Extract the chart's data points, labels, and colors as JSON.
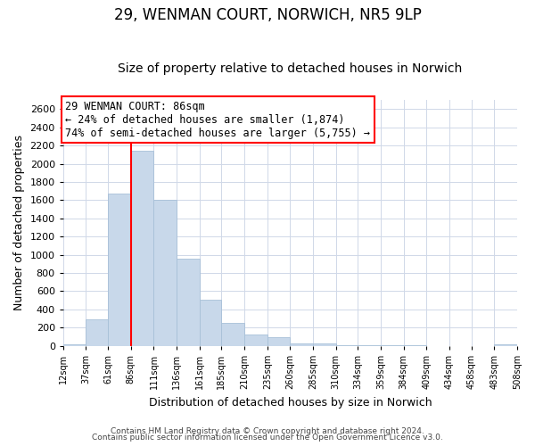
{
  "title": "29, WENMAN COURT, NORWICH, NR5 9LP",
  "subtitle": "Size of property relative to detached houses in Norwich",
  "xlabel": "Distribution of detached houses by size in Norwich",
  "ylabel": "Number of detached properties",
  "bar_color": "#c8d8ea",
  "bar_edgecolor": "#a8c0d8",
  "vline_x": 86,
  "vline_color": "red",
  "annotation_title": "29 WENMAN COURT: 86sqm",
  "annotation_line1": "← 24% of detached houses are smaller (1,874)",
  "annotation_line2": "74% of semi-detached houses are larger (5,755) →",
  "annotation_box_edgecolor": "red",
  "footer1": "Contains HM Land Registry data © Crown copyright and database right 2024.",
  "footer2": "Contains public sector information licensed under the Open Government Licence v3.0.",
  "bin_edges": [
    12,
    37,
    61,
    86,
    111,
    136,
    161,
    185,
    210,
    235,
    260,
    285,
    310,
    334,
    359,
    384,
    409,
    434,
    458,
    483,
    508
  ],
  "bin_labels": [
    "12sqm",
    "37sqm",
    "61sqm",
    "86sqm",
    "111sqm",
    "136sqm",
    "161sqm",
    "185sqm",
    "210sqm",
    "235sqm",
    "260sqm",
    "285sqm",
    "310sqm",
    "334sqm",
    "359sqm",
    "384sqm",
    "409sqm",
    "434sqm",
    "458sqm",
    "483sqm",
    "508sqm"
  ],
  "bar_heights": [
    15,
    295,
    1670,
    2140,
    1600,
    960,
    505,
    250,
    125,
    95,
    30,
    25,
    5,
    5,
    5,
    5,
    0,
    0,
    0,
    20
  ],
  "ylim": [
    0,
    2700
  ],
  "yticks": [
    0,
    200,
    400,
    600,
    800,
    1000,
    1200,
    1400,
    1600,
    1800,
    2000,
    2200,
    2400,
    2600
  ],
  "figure_facecolor": "#ffffff",
  "plot_facecolor": "#ffffff",
  "title_fontsize": 12,
  "subtitle_fontsize": 10
}
